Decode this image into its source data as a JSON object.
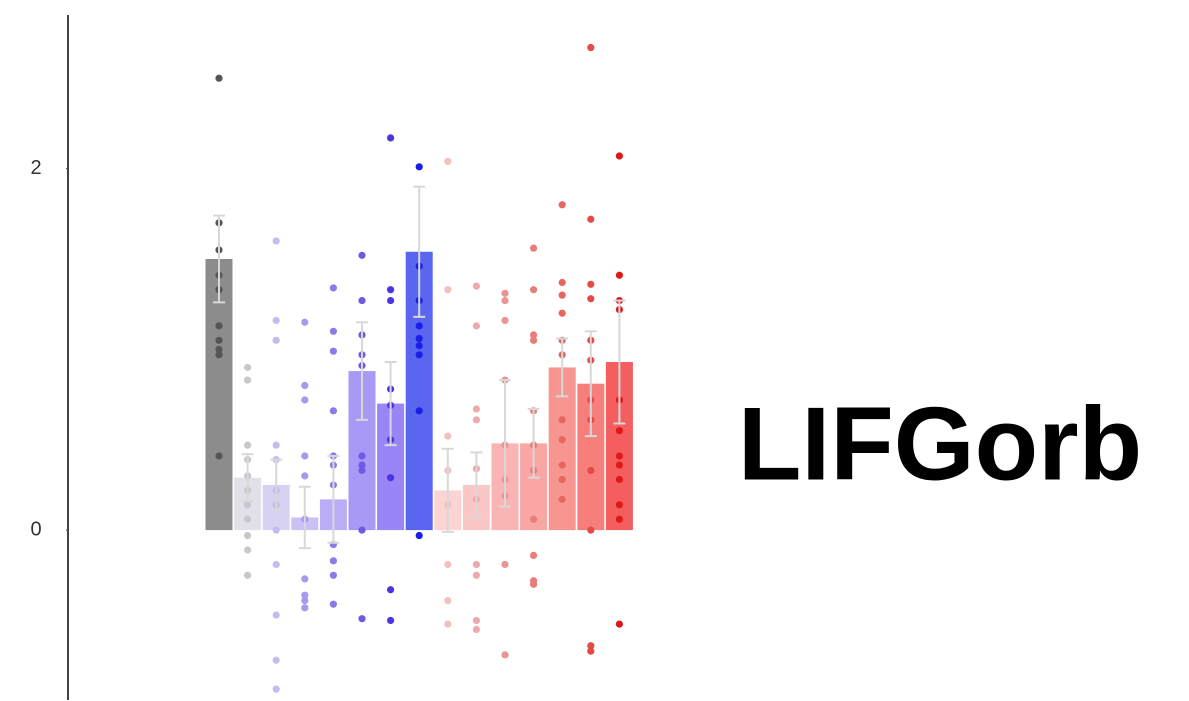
{
  "chart_data": {
    "type": "bar",
    "title": "LIFGorb",
    "ylim": [
      -0.94,
      2.85
    ],
    "yticks": [
      0,
      2
    ],
    "values": [
      1.5,
      0.29,
      0.25,
      0.07,
      0.17,
      0.88,
      0.7,
      1.54,
      0.22,
      0.25,
      0.48,
      0.48,
      0.9,
      0.81,
      0.93
    ],
    "errors": [
      0.24,
      0.13,
      0.14,
      0.17,
      0.24,
      0.27,
      0.23,
      0.36,
      0.23,
      0.18,
      0.35,
      0.19,
      0.16,
      0.29,
      0.34
    ],
    "colors": [
      "#8c8c8c",
      "#e2e0e8",
      "#d8d2f2",
      "#cac0f6",
      "#bbadf6",
      "#a999f6",
      "#9a85f6",
      "#5a66f0",
      "#fcd4d4",
      "#fbc6c6",
      "#fab4b4",
      "#f9a6a4",
      "#f79590",
      "#f67f7c",
      "#f45e5e"
    ],
    "point_colors": [
      "#555555",
      "#c8c8cc",
      "#c4bcee",
      "#a898ee",
      "#8c7ae8",
      "#6e5ae6",
      "#4a36e0",
      "#1a1ee8",
      "#f2c0c0",
      "#eeaaaa",
      "#ea9494",
      "#e87e7a",
      "#e66660",
      "#e44a48",
      "#e01818"
    ],
    "points": [
      [
        2.5,
        1.7,
        1.55,
        1.41,
        1.33,
        1.13,
        1.05,
        1.0,
        0.97,
        0.41
      ],
      [
        0.9,
        0.83,
        0.47,
        0.39,
        0.3,
        0.22,
        0.14,
        0.06,
        -0.03,
        -0.11,
        -0.25
      ],
      [
        1.6,
        1.16,
        1.05,
        0.47,
        0.39,
        0.22,
        0.14,
        0,
        -0.19,
        -0.47,
        -0.72,
        -0.88
      ],
      [
        1.15,
        0.8,
        0.72,
        0.41,
        0.3,
        0.06,
        -0.27,
        -0.36,
        -0.39,
        -0.43
      ],
      [
        1.34,
        1.1,
        0.99,
        0.66,
        0.41,
        0.36,
        0.25,
        -0.08,
        -0.17,
        -0.25,
        -0.41
      ],
      [
        1.52,
        1.27,
        1.08,
        0.97,
        0.91,
        0.41,
        0.36,
        0.33,
        0,
        -0.49
      ],
      [
        2.17,
        1.33,
        1.27,
        0.78,
        0.69,
        0.5,
        0.29,
        -0.33,
        -0.5
      ],
      [
        2.01,
        1.46,
        1.27,
        1.13,
        1.06,
        1.02,
        0.97,
        0.66,
        -0.03
      ],
      [
        2.04,
        1.33,
        0.52,
        0.33,
        0.14,
        -0.19,
        -0.39,
        -0.52
      ],
      [
        1.35,
        1.13,
        0.67,
        0.61,
        0.34,
        0.17,
        -0.19,
        -0.25,
        -0.5,
        -0.55
      ],
      [
        1.31,
        1.27,
        1.16,
        0.83,
        0.47,
        0.28,
        0.19,
        -0.19,
        -0.69
      ],
      [
        1.56,
        1.33,
        1.08,
        1.05,
        0.66,
        0.47,
        0.33,
        0.06,
        -0.14,
        -0.28,
        -0.3
      ],
      [
        1.8,
        1.37,
        1.3,
        1.2,
        1.05,
        0.97,
        0.61,
        0.5,
        0.36,
        0.28,
        0.17
      ],
      [
        2.67,
        1.72,
        1.36,
        1.28,
        1.05,
        0.94,
        0.72,
        0.61,
        0.33,
        0,
        -0.64,
        -0.67
      ],
      [
        2.07,
        1.41,
        1.27,
        1.22,
        0.72,
        0.55,
        0.41,
        0.36,
        0.28,
        0.14,
        0.06,
        -0.52
      ]
    ]
  }
}
